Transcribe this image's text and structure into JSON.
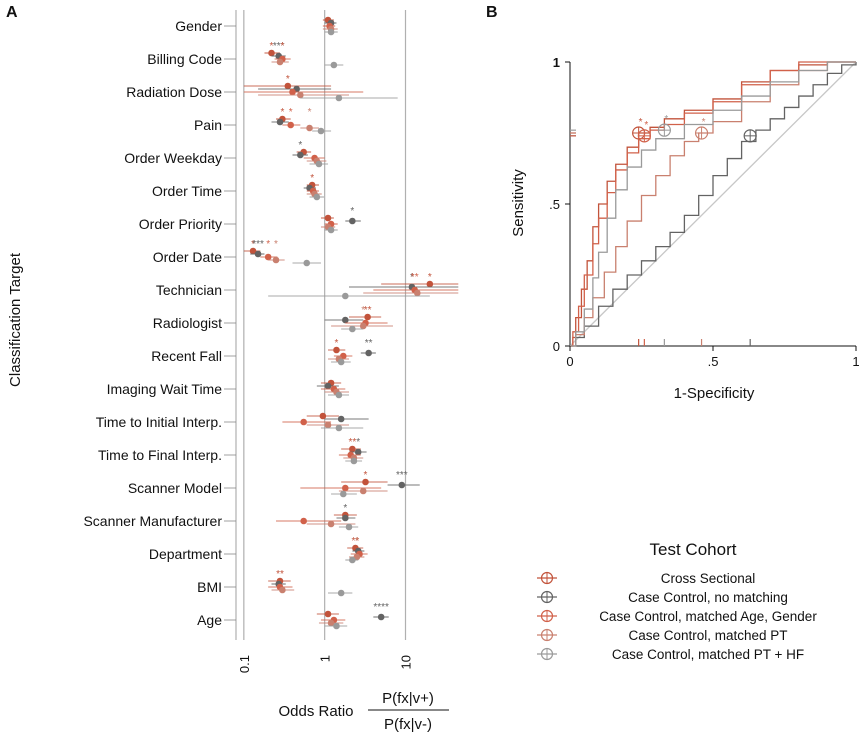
{
  "panels": {
    "a": "A",
    "b": "B"
  },
  "colors": {
    "cross_sectional": "#c2533b",
    "cc_no_matching": "#636363",
    "cc_matched_age_gender": "#d1614a",
    "cc_matched_pt": "#c9806f",
    "cc_matched_pt_hf": "#9a9a9a",
    "grid": "#b0b0b0",
    "reference": "#c7c7c7"
  },
  "legend": {
    "title": "Test Cohort",
    "items": [
      "Cross Sectional",
      "Case Control, no matching",
      "Case Control, matched Age, Gender",
      "Case Control, matched PT",
      "Case Control, matched PT + HF"
    ]
  },
  "chart_data": [
    {
      "type": "scatter",
      "title": "",
      "ylabel": "Classification Target",
      "xlabel": "Odds Ratio",
      "xlabel_formula": {
        "numerator": "P(fx|v+)",
        "denominator": "P(fx|v-)"
      },
      "xscale": "log",
      "xlim": [
        0.08,
        50
      ],
      "xticks": [
        0.1,
        1,
        10
      ],
      "xtick_labels": [
        "0.1",
        "1",
        "10"
      ],
      "grid": "vertical lines at ticks",
      "categories": [
        "Gender",
        "Billing Code",
        "Radiation Dose",
        "Pain",
        "Order Weekday",
        "Order Time",
        "Order Priority",
        "Order Date",
        "Technician",
        "Radiologist",
        "Recent Fall",
        "Imaging Wait Time",
        "Time to Initial Interp.",
        "Time to Final Interp.",
        "Scanner Model",
        "Scanner Manufacturer",
        "Department",
        "BMI",
        "Age"
      ],
      "series": [
        {
          "name": "Cross Sectional",
          "color_key": "cross_sectional",
          "values": [
            1.1,
            0.22,
            0.35,
            0.3,
            0.55,
            0.7,
            1.1,
            0.13,
            20,
            3.4,
            1.4,
            1.2,
            0.95,
            2.2,
            3.2,
            1.8,
            2.4,
            0.28,
            1.1
          ],
          "ci_low": [
            0.95,
            0.18,
            0.1,
            0.25,
            0.45,
            0.6,
            0.9,
            0.1,
            5,
            2,
            1.1,
            0.9,
            0.6,
            1.6,
            1.6,
            1.3,
            1.9,
            0.2,
            0.8
          ],
          "ci_high": [
            1.3,
            0.28,
            1.2,
            0.38,
            0.68,
            0.85,
            1.3,
            0.16,
            45,
            5,
            1.8,
            1.6,
            1.5,
            2.8,
            6,
            2.5,
            3,
            0.38,
            1.5
          ],
          "stars": [
            "",
            "*",
            "*",
            "*",
            "",
            "*",
            "",
            "*",
            "*",
            "**",
            "*",
            "",
            "",
            "**",
            "*",
            "",
            "**",
            "**",
            ""
          ]
        },
        {
          "name": "Case Control, no matching",
          "color_key": "cc_no_matching",
          "values": [
            1.2,
            0.27,
            0.45,
            0.28,
            0.5,
            0.65,
            2.2,
            0.15,
            12,
            1.8,
            3.5,
            1.1,
            1.6,
            2.6,
            9,
            1.8,
            2.6,
            0.27,
            5
          ],
          "ci_low": [
            1.0,
            0.22,
            0.15,
            0.22,
            0.4,
            0.55,
            1.8,
            0.12,
            2,
            1,
            2.8,
            0.8,
            1,
            2,
            6,
            1.4,
            2.2,
            0.22,
            4
          ],
          "ci_high": [
            1.4,
            0.33,
            1.2,
            0.36,
            0.62,
            0.78,
            2.8,
            0.18,
            45,
            3,
            4.3,
            1.5,
            3.5,
            3.3,
            15,
            2.4,
            3.1,
            0.33,
            6.2
          ],
          "stars": [
            "",
            "***",
            "",
            "",
            "*",
            "",
            "*",
            "***",
            "*",
            "",
            "**",
            "",
            "",
            "*",
            "***",
            "*",
            "",
            "",
            "****"
          ]
        },
        {
          "name": "Case Control, matched Age, Gender",
          "color_key": "cc_matched_age_gender",
          "values": [
            1.15,
            0.3,
            0.4,
            0.38,
            0.75,
            0.72,
            1.2,
            0.2,
            13,
            3.2,
            1.7,
            1.3,
            0.55,
            2.1,
            1.8,
            0.55,
            2.7,
            0.28,
            1.3
          ],
          "ci_low": [
            0.95,
            0.24,
            0.1,
            0.3,
            0.55,
            0.6,
            1,
            0.16,
            4,
            1.8,
            1.3,
            0.9,
            0.3,
            1.5,
            0.5,
            0.25,
            2.1,
            0.2,
            0.9
          ],
          "ci_high": [
            1.35,
            0.38,
            3,
            0.5,
            1,
            0.85,
            1.45,
            0.26,
            45,
            6,
            2.2,
            1.8,
            1.2,
            2.8,
            5,
            1.6,
            3.4,
            0.4,
            1.8
          ],
          "stars": [
            "",
            "*",
            "",
            "*",
            "",
            "",
            "",
            "*",
            "**",
            "",
            "",
            "",
            "",
            "",
            "",
            "",
            "",
            "",
            ""
          ]
        },
        {
          "name": "Case Control, matched PT",
          "color_key": "cc_matched_pt",
          "values": [
            1.2,
            0.28,
            0.5,
            0.65,
            0.8,
            0.75,
            1.1,
            0.25,
            14,
            3,
            1.5,
            1.4,
            1.1,
            2.3,
            3,
            1.2,
            2.5,
            0.3,
            1.2
          ],
          "ci_low": [
            0.95,
            0.22,
            0.15,
            0.5,
            0.6,
            0.6,
            0.9,
            0.2,
            3,
            1.2,
            1.1,
            1,
            0.6,
            1.7,
            1.5,
            0.6,
            2,
            0.22,
            0.85
          ],
          "ci_high": [
            1.45,
            0.36,
            2,
            0.85,
            1.05,
            0.92,
            1.35,
            0.32,
            45,
            7,
            2,
            2,
            2,
            3,
            6,
            2.4,
            3.1,
            0.42,
            1.7
          ],
          "stars": [
            "",
            "",
            "",
            "*",
            "",
            "",
            "",
            "*",
            "",
            "*",
            "",
            "",
            "",
            "",
            "",
            "",
            "*",
            "",
            ""
          ]
        },
        {
          "name": "Case Control, matched PT + HF",
          "color_key": "cc_matched_pt_hf",
          "values": [
            1.2,
            1.3,
            1.5,
            0.9,
            0.85,
            0.8,
            1.2,
            0.6,
            1.8,
            2.2,
            1.6,
            1.5,
            1.5,
            2.3,
            1.7,
            2,
            2.2,
            1.6,
            1.4
          ],
          "ci_low": [
            1,
            1,
            0.5,
            0.7,
            0.65,
            0.65,
            1,
            0.4,
            0.2,
            1.6,
            1.2,
            1.1,
            0.9,
            1.8,
            1.2,
            1.5,
            1.8,
            1.1,
            1
          ],
          "ci_high": [
            1.45,
            1.7,
            8,
            1.2,
            1.1,
            0.98,
            1.45,
            0.9,
            20,
            3,
            2.1,
            2,
            3,
            2.9,
            2.5,
            2.6,
            2.6,
            2.2,
            1.9
          ],
          "stars": [
            "",
            "",
            "",
            "",
            "",
            "",
            "",
            "",
            "",
            "",
            "",
            "",
            "",
            "",
            "",
            "",
            "",
            "",
            ""
          ]
        }
      ]
    },
    {
      "type": "line",
      "title": "",
      "xlabel": "1-Specificity",
      "ylabel": "Sensitivity",
      "xlim": [
        0,
        1
      ],
      "ylim": [
        0,
        1
      ],
      "xticks": [
        0,
        0.5,
        1
      ],
      "xtick_labels": [
        "0",
        ".5",
        "1"
      ],
      "yticks": [
        0,
        0.5,
        1
      ],
      "ytick_labels": [
        "0",
        ".5",
        "1"
      ],
      "reference_line": [
        [
          0,
          0
        ],
        [
          1,
          1
        ]
      ],
      "series": [
        {
          "name": "Cross Sectional",
          "color_key": "cross_sectional",
          "x": [
            0,
            0.01,
            0.02,
            0.04,
            0.06,
            0.08,
            0.1,
            0.13,
            0.16,
            0.2,
            0.24,
            0.28,
            0.33,
            0.4,
            0.5,
            0.6,
            0.7,
            0.8,
            0.9,
            1
          ],
          "y": [
            0,
            0.03,
            0.1,
            0.2,
            0.3,
            0.42,
            0.5,
            0.58,
            0.64,
            0.7,
            0.75,
            0.77,
            0.8,
            0.83,
            0.87,
            0.93,
            0.97,
            0.99,
            1,
            1
          ],
          "op_point": [
            0.24,
            0.75
          ],
          "star": "*"
        },
        {
          "name": "Case Control, no matching",
          "color_key": "cc_no_matching",
          "x": [
            0,
            0.02,
            0.05,
            0.1,
            0.15,
            0.2,
            0.25,
            0.3,
            0.35,
            0.4,
            0.45,
            0.5,
            0.55,
            0.6,
            0.65,
            0.7,
            0.75,
            0.8,
            0.85,
            0.9,
            0.95,
            1
          ],
          "y": [
            0,
            0.03,
            0.07,
            0.14,
            0.2,
            0.25,
            0.3,
            0.35,
            0.4,
            0.46,
            0.53,
            0.6,
            0.66,
            0.72,
            0.76,
            0.8,
            0.84,
            0.88,
            0.92,
            0.96,
            0.99,
            1
          ],
          "op_point": [
            0.63,
            0.74
          ],
          "star": ""
        },
        {
          "name": "Case Control, matched Age, Gender",
          "color_key": "cc_matched_age_gender",
          "x": [
            0,
            0.01,
            0.03,
            0.05,
            0.08,
            0.1,
            0.13,
            0.16,
            0.2,
            0.24,
            0.28,
            0.33,
            0.4,
            0.5,
            0.6,
            0.7,
            0.8,
            0.9,
            1
          ],
          "y": [
            0,
            0.05,
            0.14,
            0.25,
            0.36,
            0.45,
            0.54,
            0.62,
            0.68,
            0.73,
            0.76,
            0.78,
            0.82,
            0.86,
            0.92,
            0.97,
            1,
            1,
            1
          ],
          "op_point": [
            0.26,
            0.74
          ],
          "star": "*"
        },
        {
          "name": "Case Control, matched PT",
          "color_key": "cc_matched_pt",
          "x": [
            0,
            0.02,
            0.05,
            0.08,
            0.12,
            0.16,
            0.2,
            0.25,
            0.3,
            0.35,
            0.4,
            0.45,
            0.5,
            0.6,
            0.7,
            0.8,
            0.9,
            1
          ],
          "y": [
            0,
            0.04,
            0.1,
            0.17,
            0.26,
            0.35,
            0.44,
            0.53,
            0.6,
            0.67,
            0.72,
            0.75,
            0.79,
            0.86,
            0.92,
            0.97,
            1,
            1
          ],
          "op_point": [
            0.46,
            0.75
          ],
          "star": "*"
        },
        {
          "name": "Case Control, matched PT + HF",
          "color_key": "cc_matched_pt_hf",
          "x": [
            0,
            0.02,
            0.05,
            0.08,
            0.1,
            0.13,
            0.16,
            0.2,
            0.25,
            0.3,
            0.4,
            0.5,
            0.6,
            0.7,
            0.8,
            0.9,
            1
          ],
          "y": [
            0,
            0.05,
            0.13,
            0.24,
            0.33,
            0.45,
            0.55,
            0.63,
            0.69,
            0.73,
            0.78,
            0.83,
            0.88,
            0.93,
            0.97,
            1,
            1
          ],
          "op_point": [
            0.33,
            0.76
          ],
          "star": "*"
        }
      ]
    }
  ]
}
